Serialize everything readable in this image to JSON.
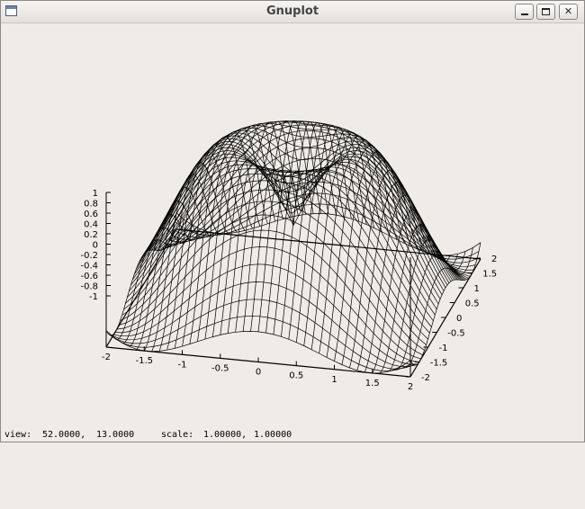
{
  "window": {
    "title": "Gnuplot",
    "buttons": {
      "minimize": "minimize",
      "maximize": "maximize",
      "close": "✕"
    }
  },
  "status": {
    "view_label": "view:",
    "view_rot_x": "52.0000,",
    "view_rot_z": "13.0000",
    "scale_label": "scale:",
    "scale_x": "1.00000,",
    "scale_z": "1.00000"
  },
  "chart_data": {
    "type": "surface",
    "render": "wireframe",
    "x_ticks": [
      "-2",
      "-1.5",
      "-1",
      "-0.5",
      "0",
      "0.5",
      "1",
      "1.5",
      "2"
    ],
    "y_ticks": [
      "-2",
      "-1.5",
      "-1",
      "-0.5",
      "0",
      "0.5",
      "1",
      "1.5",
      "2"
    ],
    "z_ticks": [
      "1",
      "0.8",
      "0.6",
      "0.4",
      "0.2",
      "0",
      "-0.2",
      "-0.4",
      "-0.6",
      "-0.8",
      "-1"
    ],
    "xrange": [
      -2,
      2
    ],
    "yrange": [
      -2,
      2
    ],
    "zrange": [
      -1,
      1
    ],
    "view": {
      "rot_x": 52,
      "rot_z": 13,
      "scale": 1,
      "scale_z": 1
    },
    "grid_samples": 40,
    "line_color": "#000000",
    "background": "#efebe7"
  }
}
